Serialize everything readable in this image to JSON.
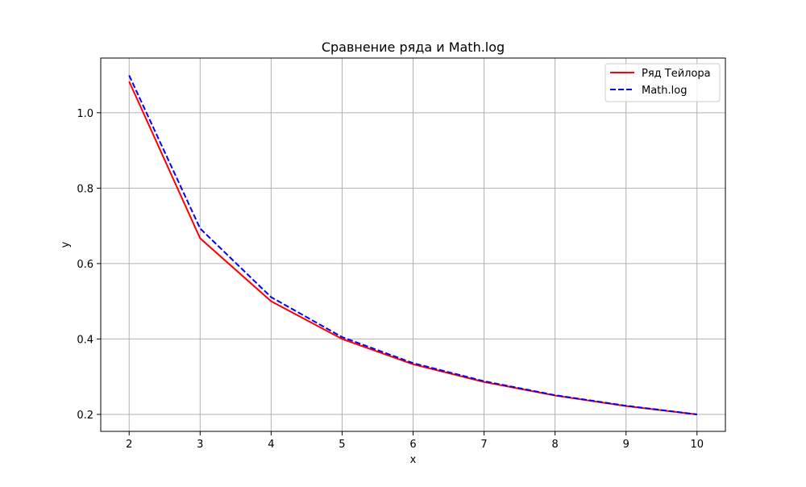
{
  "chart_data": {
    "type": "line",
    "title": "Сравнение ряда и Math.log",
    "xlabel": "x",
    "ylabel": "y",
    "xlim": [
      1.6,
      10.4
    ],
    "ylim": [
      0.155,
      1.145
    ],
    "xticks": [
      2,
      3,
      4,
      5,
      6,
      7,
      8,
      9,
      10
    ],
    "yticks": [
      0.2,
      0.4,
      0.6,
      0.8,
      1.0
    ],
    "ytick_labels": [
      "0.2",
      "0.4",
      "0.6",
      "0.8",
      "1.0"
    ],
    "grid": true,
    "legend_position": "top-right",
    "x": [
      2,
      3,
      4,
      5,
      6,
      7,
      8,
      9,
      10
    ],
    "series": [
      {
        "name": "Ряд Тейлора",
        "color": "#ff0000",
        "style": "solid",
        "values": [
          1.083,
          0.667,
          0.5,
          0.4,
          0.333,
          0.286,
          0.25,
          0.222,
          0.2
        ]
      },
      {
        "name": "Math.log",
        "color": "#0000ff",
        "style": "dashed",
        "values": [
          1.099,
          0.693,
          0.511,
          0.405,
          0.336,
          0.288,
          0.251,
          0.223,
          0.2
        ]
      }
    ]
  }
}
